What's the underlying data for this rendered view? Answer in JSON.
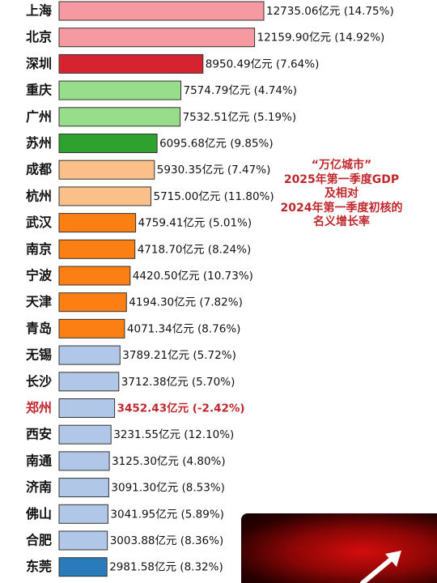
{
  "colors": {
    "tier_top": "#f59aa0",
    "tier_shenzhen": "#d52430",
    "tier_green_light": "#98de8a",
    "tier_green_dark": "#2ea12f",
    "tier_peach": "#fbbf8a",
    "tier_orange": "#fb7f13",
    "tier_blue_light": "#b1c7e7",
    "tier_blue_dark": "#2a7bba",
    "highlight_text": "#c0282d",
    "bar_border": "#333333"
  },
  "title_lines": [
    "“万亿城市”",
    "2025年第一季度GDP",
    "及相对",
    "2024年第一季度初核的",
    "名义增长率"
  ],
  "chart_data": {
    "type": "bar",
    "orientation": "horizontal",
    "title": "“万亿城市” 2025年第一季度GDP 及相对 2024年第一季度初核的 名义增长率",
    "value_unit": "亿元",
    "bars": [
      {
        "city": "上海",
        "value": 12735.06,
        "label": "12735.06亿元 (14.75%)",
        "color": "#f59aa0",
        "highlight": false
      },
      {
        "city": "北京",
        "value": 12159.9,
        "label": "12159.90亿元 (14.92%)",
        "color": "#f59aa0",
        "highlight": false
      },
      {
        "city": "深圳",
        "value": 8950.49,
        "label": "8950.49亿元 (7.64%)",
        "color": "#d52430",
        "highlight": false
      },
      {
        "city": "重庆",
        "value": 7574.79,
        "label": "7574.79亿元 (4.74%)",
        "color": "#98de8a",
        "highlight": false
      },
      {
        "city": "广州",
        "value": 7532.51,
        "label": "7532.51亿元 (5.19%)",
        "color": "#98de8a",
        "highlight": false
      },
      {
        "city": "苏州",
        "value": 6095.68,
        "label": "6095.68亿元 (9.85%)",
        "color": "#2ea12f",
        "highlight": false
      },
      {
        "city": "成都",
        "value": 5930.35,
        "label": "5930.35亿元 (7.47%)",
        "color": "#fbbf8a",
        "highlight": false
      },
      {
        "city": "杭州",
        "value": 5715.0,
        "label": "5715.00亿元 (11.80%)",
        "color": "#fbbf8a",
        "highlight": false
      },
      {
        "city": "武汉",
        "value": 4759.41,
        "label": "4759.41亿元 (5.01%)",
        "color": "#fb7f13",
        "highlight": false
      },
      {
        "city": "南京",
        "value": 4718.7,
        "label": "4718.70亿元 (8.24%)",
        "color": "#fb7f13",
        "highlight": false
      },
      {
        "city": "宁波",
        "value": 4420.5,
        "label": "4420.50亿元 (10.73%)",
        "color": "#fb7f13",
        "highlight": false
      },
      {
        "city": "天津",
        "value": 4194.3,
        "label": "4194.30亿元 (7.82%)",
        "color": "#fb7f13",
        "highlight": false
      },
      {
        "city": "青岛",
        "value": 4071.34,
        "label": "4071.34亿元 (8.76%)",
        "color": "#fb7f13",
        "highlight": false
      },
      {
        "city": "无锡",
        "value": 3789.21,
        "label": "3789.21亿元 (5.72%)",
        "color": "#b1c7e7",
        "highlight": false
      },
      {
        "city": "长沙",
        "value": 3712.38,
        "label": "3712.38亿元 (5.70%)",
        "color": "#b1c7e7",
        "highlight": false
      },
      {
        "city": "郑州",
        "value": 3452.43,
        "label": "3452.43亿元 (-2.42%)",
        "color": "#b1c7e7",
        "highlight": true
      },
      {
        "city": "西安",
        "value": 3231.55,
        "label": "3231.55亿元 (12.10%)",
        "color": "#b1c7e7",
        "highlight": false
      },
      {
        "city": "南通",
        "value": 3125.3,
        "label": "3125.30亿元 (4.80%)",
        "color": "#b1c7e7",
        "highlight": false
      },
      {
        "city": "济南",
        "value": 3091.3,
        "label": "3091.30亿元 (8.53%)",
        "color": "#b1c7e7",
        "highlight": false
      },
      {
        "city": "佛山",
        "value": 3041.95,
        "label": "3041.95亿元 (5.89%)",
        "color": "#b1c7e7",
        "highlight": false
      },
      {
        "city": "合肥",
        "value": 3003.88,
        "label": "3003.88亿元 (8.36%)",
        "color": "#b1c7e7",
        "highlight": false
      },
      {
        "city": "东莞",
        "value": 2981.58,
        "label": "2981.58亿元 (8.32%)",
        "color": "#2a7bba",
        "highlight": false
      }
    ]
  }
}
